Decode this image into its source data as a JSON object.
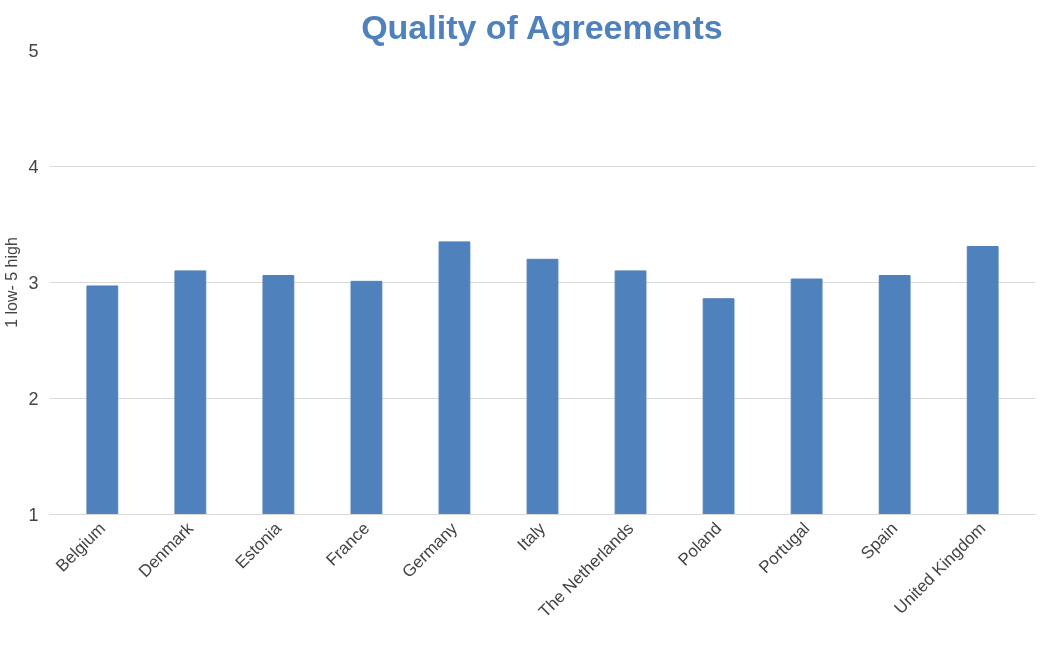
{
  "chart_data": {
    "type": "bar",
    "title": "Quality of Agreements",
    "ylabel": "1 low- 5 high",
    "categories": [
      "Belgium",
      "Denmark",
      "Estonia",
      "France",
      "Germany",
      "Italy",
      "The Netherlands",
      "Poland",
      "Portugal",
      "Spain",
      "United Kingdom"
    ],
    "values": [
      2.97,
      3.1,
      3.06,
      3.01,
      3.35,
      3.2,
      3.1,
      2.86,
      3.03,
      3.06,
      3.31
    ],
    "color": "#4f81bd",
    "ylim": [
      1,
      5
    ],
    "yticks": [
      1,
      2,
      3,
      4,
      5
    ],
    "grid": "y"
  }
}
